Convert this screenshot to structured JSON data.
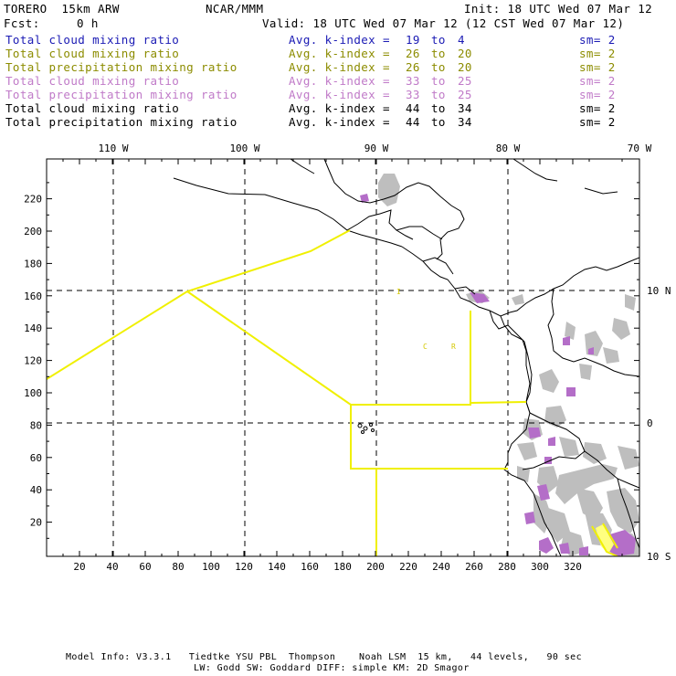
{
  "header": {
    "model": "TORERO  15km ARW",
    "org": "NCAR/MMM",
    "init": "Init: 18 UTC Wed 07 Mar 12",
    "fcst_label": "Fcst:",
    "fcst_value": "0 h",
    "valid": "Valid: 18 UTC Wed 07 Mar 12 (12 CST Wed 07 Mar 12)"
  },
  "legend": [
    {
      "field": "Total cloud mixing ratio",
      "stat": "Avg. k-index = ",
      "from": "19",
      "to_word": "to",
      "to": "4",
      "sm": "sm= 2",
      "color": "#1a1ab4"
    },
    {
      "field": "Total cloud mixing ratio",
      "stat": "Avg. k-index = ",
      "from": "26",
      "to_word": "to",
      "to": "20",
      "sm": "sm= 2",
      "color": "#8c8c00"
    },
    {
      "field": "Total precipitation mixing ratio",
      "stat": "Avg. k-index = ",
      "from": "26",
      "to_word": "to",
      "to": "20",
      "sm": "sm= 2",
      "color": "#8c8c00"
    },
    {
      "field": "Total cloud mixing ratio",
      "stat": "Avg. k-index = ",
      "from": "33",
      "to_word": "to",
      "to": "25",
      "sm": "sm= 2",
      "color": "#c07ac8"
    },
    {
      "field": "Total precipitation mixing ratio",
      "stat": "Avg. k-index = ",
      "from": "33",
      "to_word": "to",
      "to": "25",
      "sm": "sm= 2",
      "color": "#c07ac8"
    },
    {
      "field": "Total cloud mixing ratio",
      "stat": "Avg. k-index = ",
      "from": "44",
      "to_word": "to",
      "to": "34",
      "sm": "sm= 2",
      "color": "#000000"
    },
    {
      "field": "Total precipitation mixing ratio",
      "stat": "Avg. k-index = ",
      "from": "44",
      "to_word": "to",
      "to": "34",
      "sm": "sm= 2",
      "color": "#000000"
    }
  ],
  "axes": {
    "top_lon_labels": [
      "110 W",
      "100 W",
      "90 W",
      "80 W",
      "70 W"
    ],
    "right_lat_labels": [
      "10 N",
      "0",
      "10 S"
    ],
    "x_ticks": [
      "20",
      "40",
      "60",
      "80",
      "100",
      "120",
      "140",
      "160",
      "180",
      "200",
      "220",
      "240",
      "260",
      "280",
      "300",
      "320"
    ],
    "y_ticks": [
      "220",
      "200",
      "180",
      "160",
      "140",
      "120",
      "100",
      "80",
      "60",
      "40",
      "20"
    ]
  },
  "map_labels": {
    "c_label": "C",
    "r_label": "R",
    "i_label": "I"
  },
  "colors": {
    "yellow": "#f0f000",
    "gray": "#bebebe",
    "purple": "#b46ec8",
    "pale_yellow": "#ffff80"
  },
  "footer": {
    "line1": "Model Info: V3.3.1   Tiedtke YSU PBL  Thompson    Noah LSM  15 km,   44 levels,   90 sec",
    "line2": "LW: Godd SW: Goddard DIFF: simple KM: 2D Smagor"
  }
}
